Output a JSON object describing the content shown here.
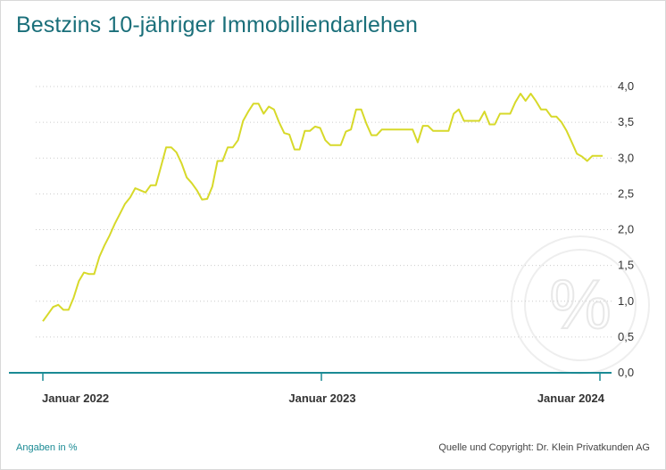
{
  "title": "Bestzins 10-jähriger Immobiliendarlehen",
  "footer": {
    "unit_note": "Angaben in %",
    "source": "Quelle und Copyright: Dr. Klein Privatkunden AG"
  },
  "watermark_icon": "percent-icon",
  "colors": {
    "title": "#1a6f7a",
    "line": "#d7d92a",
    "axis": "#1a8a94",
    "grid": "#cccccc",
    "watermark": "#eeeeee"
  },
  "chart_data": {
    "type": "line",
    "title": "Bestzins 10-jähriger Immobiliendarlehen",
    "xlabel": "",
    "ylabel": "",
    "ylim": [
      0,
      4
    ],
    "yticks": [
      "0,0",
      "0,5",
      "1,0",
      "1,5",
      "2,0",
      "2,5",
      "3,0",
      "3,5",
      "4,0"
    ],
    "xtick_labels": [
      "Januar 2022",
      "Januar 2023",
      "Januar 2024"
    ],
    "grid": "horizontal dotted",
    "series": [
      {
        "values": [
          0.72,
          0.82,
          0.92,
          0.95,
          0.88,
          0.88,
          1.05,
          1.28,
          1.4,
          1.38,
          1.38,
          1.62,
          1.78,
          1.92,
          2.08,
          2.22,
          2.36,
          2.45,
          2.58,
          2.55,
          2.52,
          2.62,
          2.62,
          2.88,
          3.15,
          3.15,
          3.08,
          2.93,
          2.73,
          2.65,
          2.55,
          2.42,
          2.43,
          2.6,
          2.96,
          2.96,
          3.15,
          3.15,
          3.25,
          3.52,
          3.65,
          3.76,
          3.76,
          3.62,
          3.72,
          3.68,
          3.5,
          3.35,
          3.33,
          3.12,
          3.12,
          3.38,
          3.38,
          3.44,
          3.42,
          3.25,
          3.18,
          3.18,
          3.18,
          3.37,
          3.4,
          3.68,
          3.68,
          3.48,
          3.32,
          3.32,
          3.4,
          3.4,
          3.4,
          3.4,
          3.4,
          3.4,
          3.4,
          3.22,
          3.45,
          3.45,
          3.38,
          3.38,
          3.38,
          3.38,
          3.62,
          3.68,
          3.52,
          3.52,
          3.52,
          3.52,
          3.65,
          3.47,
          3.47,
          3.62,
          3.62,
          3.62,
          3.78,
          3.9,
          3.8,
          3.9,
          3.8,
          3.68,
          3.68,
          3.58,
          3.58,
          3.5,
          3.38,
          3.22,
          3.06,
          3.02,
          2.96,
          3.03,
          3.03,
          3.03
        ]
      }
    ]
  }
}
